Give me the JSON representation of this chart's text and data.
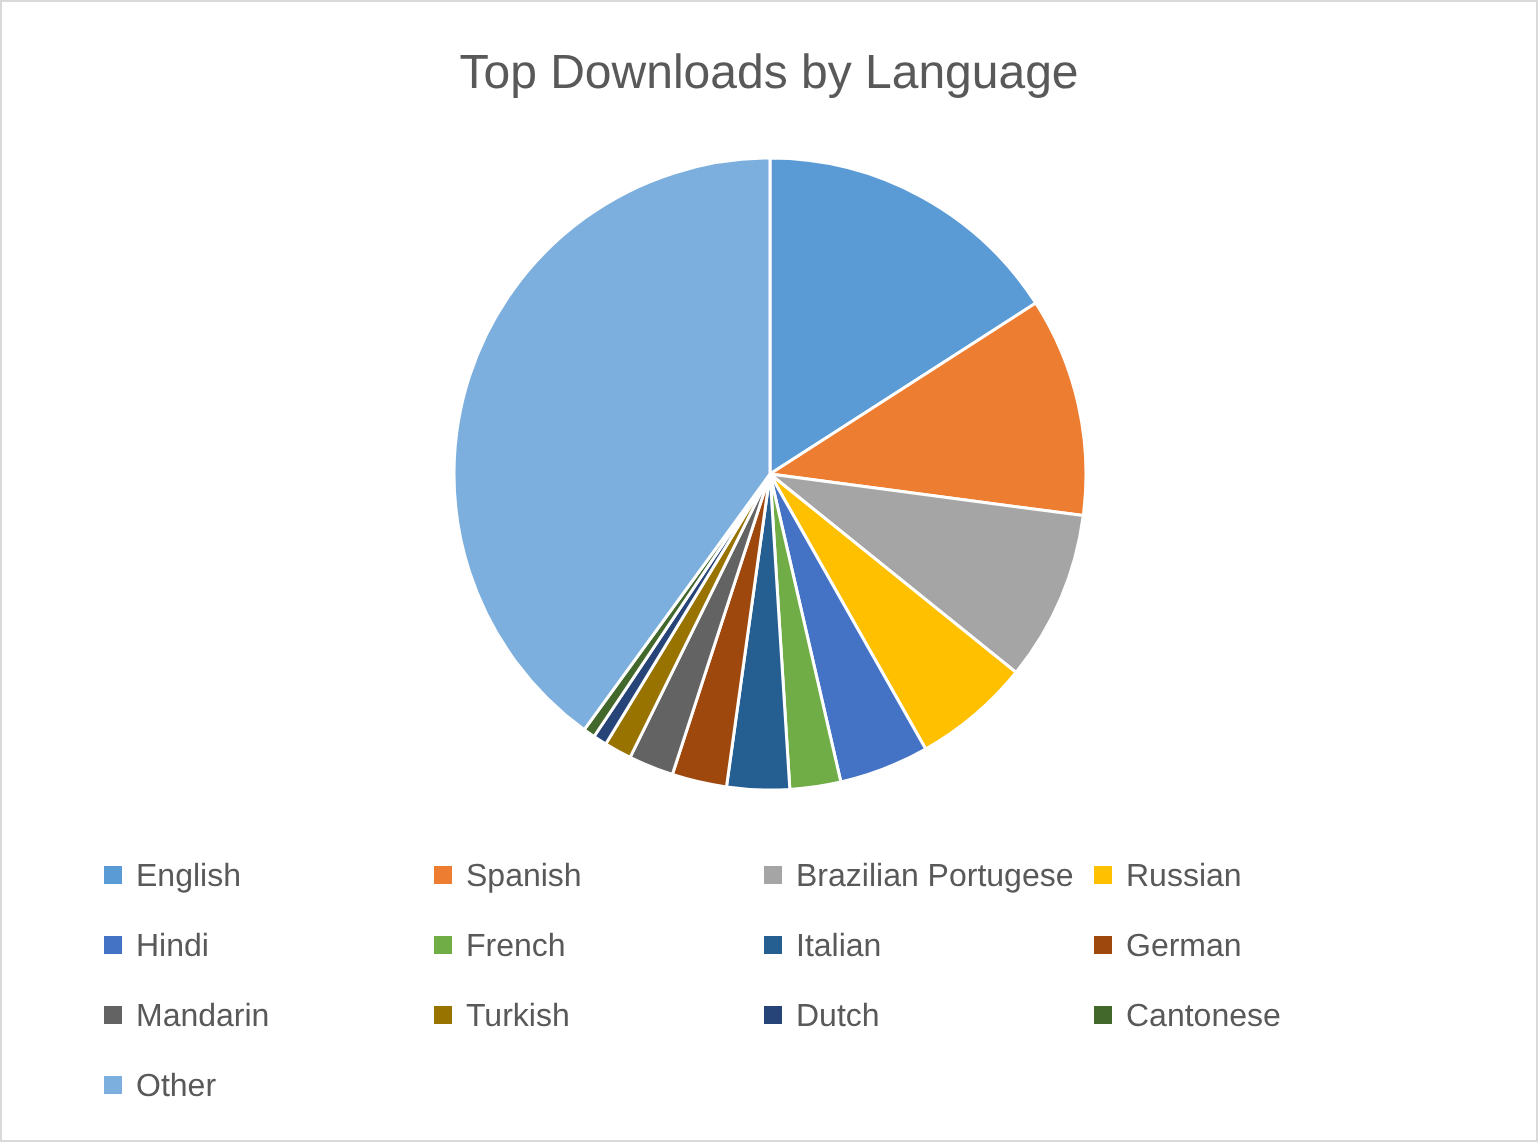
{
  "chart_data": {
    "type": "pie",
    "title": "Top Downloads by Language",
    "categories": [
      "English",
      "Spanish",
      "Brazilian Portugese",
      "Russian",
      "Hindi",
      "French",
      "Italian",
      "German",
      "Mandarin",
      "Turkish",
      "Dutch",
      "Cantonese",
      "Other"
    ],
    "values": [
      15.9,
      11.2,
      8.7,
      6.0,
      4.6,
      2.6,
      3.2,
      2.8,
      2.3,
      1.4,
      0.7,
      0.6,
      40.0
    ],
    "colors": [
      "#5b9bd5",
      "#ed7d31",
      "#a5a5a5",
      "#ffc000",
      "#4472c4",
      "#70ad47",
      "#255e91",
      "#9e480e",
      "#636363",
      "#997300",
      "#264478",
      "#43682b",
      "#7cafdd"
    ],
    "legend": "bottom"
  }
}
